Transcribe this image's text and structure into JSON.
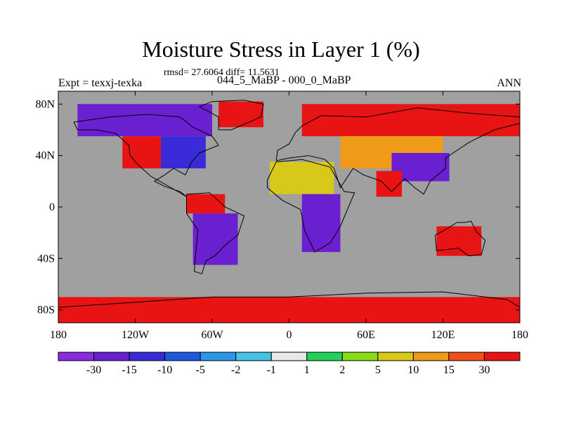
{
  "chart_data": {
    "type": "heatmap",
    "title": "Moisture Stress in Layer 1 (%)",
    "stats_line": "rmsd= 27.6064 diff= 11.5631",
    "left_label": "Expt = texxj-texka",
    "subtitle": "044_5_MaBP - 000_0_MaBP",
    "right_label": "ANN",
    "x_axis": {
      "range": [
        -180,
        180
      ],
      "ticks": [
        -180,
        -120,
        -60,
        0,
        60,
        120,
        180
      ],
      "tick_labels": [
        "180",
        "120W",
        "60W",
        "0",
        "60E",
        "120E",
        "180"
      ]
    },
    "y_axis": {
      "range": [
        -90,
        90
      ],
      "ticks": [
        -80,
        -40,
        0,
        40,
        80
      ],
      "tick_labels": [
        "80S",
        "40S",
        "0",
        "40N",
        "80N"
      ]
    },
    "colorbar": {
      "labels": [
        "-30",
        "-15",
        "-10",
        "-5",
        "-2",
        "-1",
        "1",
        "2",
        "5",
        "10",
        "15",
        "30"
      ],
      "colors": [
        "#8A2BE2",
        "#6A1FD0",
        "#3A2BD8",
        "#1E5AE0",
        "#2C96E8",
        "#48C2E4",
        "#E8E8E8",
        "#22D05A",
        "#8ADC1A",
        "#D8C81A",
        "#F09A1A",
        "#F0501A",
        "#E81414"
      ]
    },
    "ocean_color": "#A0A0A0",
    "regions": [
      {
        "name": "North America north",
        "lon": [
          -165,
          -60
        ],
        "lat": [
          55,
          80
        ],
        "value": -30
      },
      {
        "name": "North America west",
        "lon": [
          -130,
          -100
        ],
        "lat": [
          30,
          55
        ],
        "value": 30
      },
      {
        "name": "North America central",
        "lon": [
          -100,
          -65
        ],
        "lat": [
          30,
          55
        ],
        "value": -15
      },
      {
        "name": "Greenland",
        "lon": [
          -55,
          -20
        ],
        "lat": [
          62,
          82
        ],
        "value": 30
      },
      {
        "name": "South America north",
        "lon": [
          -80,
          -50
        ],
        "lat": [
          -5,
          10
        ],
        "value": 30
      },
      {
        "name": "South America south",
        "lon": [
          -75,
          -40
        ],
        "lat": [
          -45,
          -5
        ],
        "value": -30
      },
      {
        "name": "Africa north",
        "lon": [
          -15,
          35
        ],
        "lat": [
          10,
          35
        ],
        "value": 5
      },
      {
        "name": "Africa south",
        "lon": [
          10,
          40
        ],
        "lat": [
          -35,
          10
        ],
        "value": -30
      },
      {
        "name": "Eurasia north",
        "lon": [
          10,
          180
        ],
        "lat": [
          55,
          80
        ],
        "value": 30
      },
      {
        "name": "Central Asia",
        "lon": [
          40,
          120
        ],
        "lat": [
          30,
          55
        ],
        "value": 10
      },
      {
        "name": "China",
        "lon": [
          80,
          125
        ],
        "lat": [
          20,
          42
        ],
        "value": -30
      },
      {
        "name": "India",
        "lon": [
          68,
          88
        ],
        "lat": [
          8,
          28
        ],
        "value": 30
      },
      {
        "name": "Australia",
        "lon": [
          115,
          150
        ],
        "lat": [
          -38,
          -15
        ],
        "value": 30
      },
      {
        "name": "Antarctica",
        "lon": [
          -180,
          180
        ],
        "lat": [
          -90,
          -70
        ],
        "value": 30
      }
    ],
    "grid": false,
    "legend_position": "bottom"
  }
}
